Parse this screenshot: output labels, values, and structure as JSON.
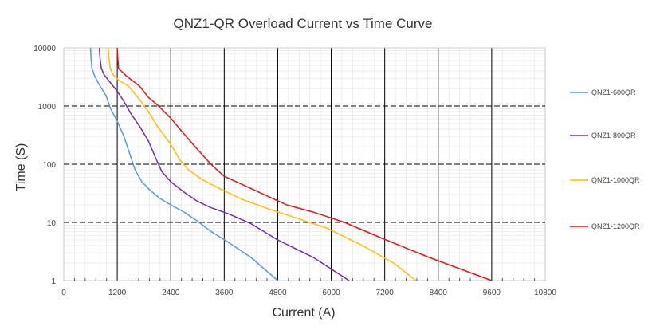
{
  "chart_data": {
    "type": "line",
    "title": "QNZ1-QR Overload Current  vs  Time Curve",
    "xlabel": "Current (A)",
    "ylabel": "Time (S)",
    "xlim": [
      0,
      10800
    ],
    "ylim": [
      1,
      10000
    ],
    "yscale": "log",
    "x_ticks": [
      "0",
      "1200",
      "2400",
      "3600",
      "4800",
      "6000",
      "7200",
      "8400",
      "9600",
      "10800"
    ],
    "y_ticks": [
      "1",
      "10",
      "100",
      "1000",
      "10000"
    ],
    "grid": true,
    "legend_position": "right",
    "series": [
      {
        "name": "QNZ1-600QR",
        "color": "#5B9BD5",
        "points": [
          [
            600,
            10000
          ],
          [
            610,
            7000
          ],
          [
            630,
            4500
          ],
          [
            700,
            3200
          ],
          [
            800,
            2300
          ],
          [
            950,
            1500
          ],
          [
            1050,
            900
          ],
          [
            1200,
            550
          ],
          [
            1350,
            300
          ],
          [
            1480,
            150
          ],
          [
            1600,
            80
          ],
          [
            1750,
            50
          ],
          [
            1950,
            35
          ],
          [
            2150,
            26
          ],
          [
            2400,
            20
          ],
          [
            2700,
            15
          ],
          [
            3000,
            10.5
          ],
          [
            3300,
            7
          ],
          [
            3700,
            4.5
          ],
          [
            4200,
            2.5
          ],
          [
            4800,
            1
          ]
        ]
      },
      {
        "name": "QNZ1-800QR",
        "color": "#7030A0",
        "points": [
          [
            800,
            10000
          ],
          [
            810,
            7000
          ],
          [
            840,
            4500
          ],
          [
            900,
            3500
          ],
          [
            1050,
            2500
          ],
          [
            1200,
            1800
          ],
          [
            1350,
            1200
          ],
          [
            1500,
            750
          ],
          [
            1700,
            450
          ],
          [
            1900,
            250
          ],
          [
            2100,
            110
          ],
          [
            2200,
            75
          ],
          [
            2400,
            50
          ],
          [
            2700,
            33
          ],
          [
            3000,
            23
          ],
          [
            3300,
            18
          ],
          [
            3700,
            14
          ],
          [
            4200,
            9.5
          ],
          [
            4800,
            5
          ],
          [
            5600,
            2.5
          ],
          [
            6400,
            1
          ]
        ]
      },
      {
        "name": "QNZ1-1000QR",
        "color": "#FFC000",
        "points": [
          [
            1000,
            10000
          ],
          [
            1010,
            7000
          ],
          [
            1040,
            4500
          ],
          [
            1100,
            3500
          ],
          [
            1250,
            2700
          ],
          [
            1450,
            2200
          ],
          [
            1700,
            1300
          ],
          [
            1900,
            800
          ],
          [
            2100,
            450
          ],
          [
            2400,
            220
          ],
          [
            2600,
            120
          ],
          [
            2800,
            80
          ],
          [
            3100,
            55
          ],
          [
            3500,
            38
          ],
          [
            4000,
            25
          ],
          [
            4600,
            17
          ],
          [
            5200,
            12
          ],
          [
            5900,
            8
          ],
          [
            6700,
            4
          ],
          [
            7400,
            2
          ],
          [
            7900,
            1
          ]
        ]
      },
      {
        "name": "QNZ1-1200QR",
        "color": "#E8141B",
        "points": [
          [
            1200,
            10000
          ],
          [
            1210,
            7000
          ],
          [
            1220,
            5500
          ],
          [
            1230,
            4400
          ],
          [
            1400,
            3300
          ],
          [
            1700,
            2200
          ],
          [
            1900,
            1400
          ],
          [
            2100,
            1050
          ],
          [
            2400,
            620
          ],
          [
            2700,
            330
          ],
          [
            3000,
            180
          ],
          [
            3300,
            100
          ],
          [
            3600,
            62
          ],
          [
            4000,
            45
          ],
          [
            4500,
            30
          ],
          [
            5000,
            20
          ],
          [
            5600,
            15
          ],
          [
            6300,
            10
          ],
          [
            7100,
            5.5
          ],
          [
            8200,
            2.5
          ],
          [
            9600,
            1
          ]
        ]
      }
    ]
  }
}
